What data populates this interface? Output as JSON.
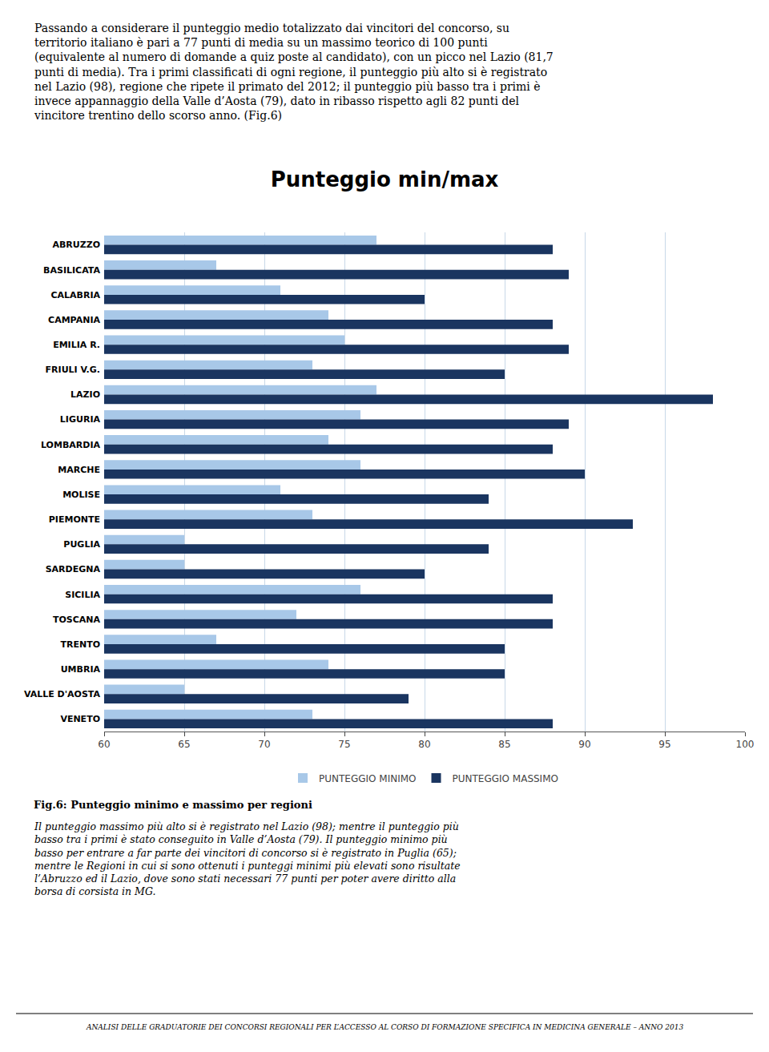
{
  "chart_data": {
    "type": "bar",
    "orientation": "horizontal",
    "title": "Punteggio min/max",
    "subtitle": [
      "Passando a considerare il punteggio medio totalizzato dai vincitori del concorso, su",
      "territorio italiano è pari a 77 punti di media su un massimo teorico di 100 punti",
      "(equivalente al numero di domande a quiz poste al candidato), con un picco nel Lazio (81,7",
      "punti di media). Tra i primi classificati di ogni regione, il punteggio più alto si è registrato",
      "nel Lazio (98), regione che ripete il primato del 2012; il punteggio più basso tra i primi è",
      "invece appannaggio della Valle d’Aosta (79), dato in ribasso rispetto agli 82 punti del",
      "vincitore trentino dello scorso anno. (Fig.6)"
    ],
    "categories": [
      "ABRUZZO",
      "BASILICATA",
      "CALABRIA",
      "CAMPANIA",
      "EMILIA R.",
      "FRIULI V.G.",
      "LAZIO",
      "LIGURIA",
      "LOMBARDIA",
      "MARCHE",
      "MOLISE",
      "PIEMONTE",
      "PUGLIA",
      "SARDEGNA",
      "SICILIA",
      "TOSCANA",
      "TRENTO",
      "UMBRIA",
      "VALLE D'AOSTA",
      "VENETO"
    ],
    "series": [
      {
        "name": "PUNTEGGIO MINIMO",
        "color": "#a8c8e8",
        "values": [
          77,
          67,
          71,
          74,
          75,
          73,
          77,
          76,
          74,
          76,
          71,
          73,
          65,
          65,
          76,
          72,
          67,
          74,
          65,
          73
        ]
      },
      {
        "name": "PUNTEGGIO MASSIMO",
        "color": "#1a3560",
        "values": [
          88,
          89,
          80,
          88,
          89,
          85,
          98,
          89,
          88,
          90,
          84,
          93,
          84,
          80,
          88,
          88,
          85,
          85,
          79,
          88
        ]
      }
    ],
    "xlim": [
      60,
      100
    ],
    "xticks": [
      60,
      65,
      70,
      75,
      80,
      85,
      90,
      95,
      100
    ],
    "grid": true,
    "legend": "bottom",
    "annotations": [
      "Fig.6: Punteggio minimo e massimo per regioni",
      "Il punteggio massimo più alto si è registrato nel Lazio (98); mentre il punteggio più",
      "basso tra i primi è stato conseguito in Valle d’Aosta (79). Il punteggio minimo più",
      "basso per entrare a far parte dei vincitori di concorso si è registrato in Puglia (65);",
      "mentre le Regioni in cui si sono ottenuti i punteggi minimi più elevati sono risultate",
      "l’Abruzzo ed il Lazio, dove sono stati necessari 77 punti per poter avere diritto alla",
      "borsa di corsista in MG.",
      "ANALISI DELLE GRADUATORIE DEI CONCORSI REGIONALI PER L’ACCESSO AL CORSO DI FORMAZIONE SPECIFICA IN MEDICINA GENERALE – ANNO 2013"
    ]
  }
}
